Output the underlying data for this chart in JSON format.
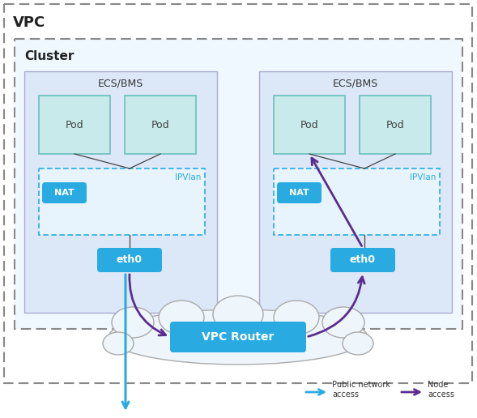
{
  "background_color": "#ffffff",
  "vpc_label": "VPC",
  "cluster_label": "Cluster",
  "ecs_label": "ECS/BMS",
  "pod_label": "Pod",
  "nat_label": "NAT",
  "eth0_label": "eth0",
  "ipvlan_label": "IPVlan",
  "router_label": "VPC Router",
  "legend_blue": "Public network\naccess",
  "legend_purple": "Node\naccess",
  "colors": {
    "vpc_border": "#888888",
    "cluster_border": "#888888",
    "cluster_fill": "#f0f8ff",
    "ecs_fill": "#dce8f7",
    "ecs_border": "#aaaacc",
    "pod_fill": "#c8eaea",
    "pod_border": "#6bbfbf",
    "ipvlan_fill": "#e8f4fd",
    "ipvlan_border": "#29abe2",
    "blue_box": "#29abe2",
    "blue_box_dark": "#1a8fd1",
    "arrow_blue": "#29abe2",
    "arrow_purple": "#5b2d8e",
    "line_dark": "#444444",
    "router_fill": "#29abe2"
  },
  "layout": {
    "fig_w": 5.89,
    "fig_h": 5.16,
    "dpi": 100
  }
}
